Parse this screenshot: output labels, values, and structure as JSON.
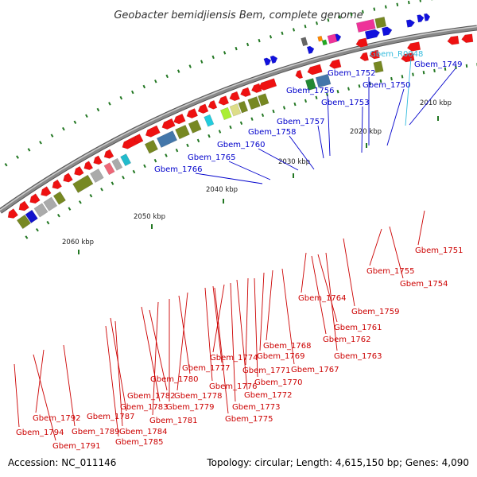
{
  "header": {
    "title": "Geobacter bemidjiensis Bem, complete genome"
  },
  "footer": {
    "accession": "Accession: NC_011146",
    "summary": "Topology: circular; Length: 4,615,150 bp; Genes: 4,090"
  },
  "colors": {
    "forward_label": "#0000cc",
    "reverse_label": "#cc0000",
    "rna_label": "#33bbdd",
    "backbone": "#888888",
    "tick": "#227722"
  },
  "axis": {
    "ticks": [
      {
        "label": "2010 kbp"
      },
      {
        "label": "2020 kbp"
      },
      {
        "label": "2030 kbp"
      },
      {
        "label": "2040 kbp"
      },
      {
        "label": "2050 kbp"
      },
      {
        "label": "2060 kbp"
      }
    ]
  },
  "labels_top": [
    {
      "text": "Gbem_R0048",
      "type": "rna"
    },
    {
      "text": "Gbem_1749",
      "type": "forward"
    },
    {
      "text": "Gbem_1752",
      "type": "forward"
    },
    {
      "text": "Gbem_1750",
      "type": "forward"
    },
    {
      "text": "Gbem_1756",
      "type": "forward"
    },
    {
      "text": "Gbem_1753",
      "type": "forward"
    },
    {
      "text": "Gbem_1757",
      "type": "forward"
    },
    {
      "text": "Gbem_1758",
      "type": "forward"
    },
    {
      "text": "Gbem_1760",
      "type": "forward"
    },
    {
      "text": "Gbem_1765",
      "type": "forward"
    },
    {
      "text": "Gbem_1766",
      "type": "forward"
    }
  ],
  "labels_bottom": [
    {
      "text": "Gbem_1751"
    },
    {
      "text": "Gbem_1755"
    },
    {
      "text": "Gbem_1754"
    },
    {
      "text": "Gbem_1764"
    },
    {
      "text": "Gbem_1759"
    },
    {
      "text": "Gbem_1761"
    },
    {
      "text": "Gbem_1762"
    },
    {
      "text": "Gbem_1763"
    },
    {
      "text": "Gbem_1768"
    },
    {
      "text": "Gbem_1769"
    },
    {
      "text": "Gbem_1767"
    },
    {
      "text": "Gbem_1774"
    },
    {
      "text": "Gbem_1777"
    },
    {
      "text": "Gbem_1771"
    },
    {
      "text": "Gbem_1770"
    },
    {
      "text": "Gbem_1780"
    },
    {
      "text": "Gbem_1776"
    },
    {
      "text": "Gbem_1772"
    },
    {
      "text": "Gbem_1782"
    },
    {
      "text": "Gbem_1778"
    },
    {
      "text": "Gbem_1783"
    },
    {
      "text": "Gbem_1779"
    },
    {
      "text": "Gbem_1773"
    },
    {
      "text": "Gbem_1787"
    },
    {
      "text": "Gbem_1781"
    },
    {
      "text": "Gbem_1775"
    },
    {
      "text": "Gbem_1792"
    },
    {
      "text": "Gbem_1789"
    },
    {
      "text": "Gbem_1784"
    },
    {
      "text": "Gbem_1794"
    },
    {
      "text": "Gbem_1785"
    },
    {
      "text": "Gbem_1791"
    }
  ]
}
